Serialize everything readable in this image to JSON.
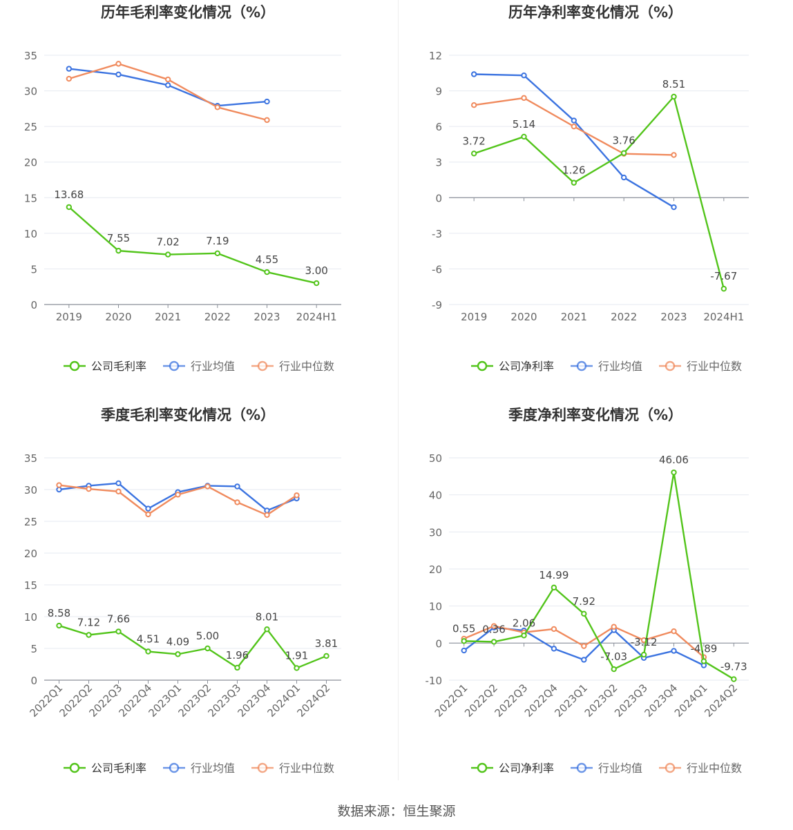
{
  "chart_data": [
    {
      "type": "line",
      "title": "历年毛利率变化情况（%）",
      "categories": [
        "2019",
        "2020",
        "2021",
        "2022",
        "2023",
        "2024H1"
      ],
      "ylim": [
        0,
        35
      ],
      "yticks": [
        0,
        5,
        10,
        15,
        20,
        25,
        30,
        35
      ],
      "grid": true,
      "legend": "bottom",
      "series": [
        {
          "name": "公司毛利率",
          "color": "#52c41a",
          "values": [
            13.68,
            7.55,
            7.02,
            7.19,
            4.55,
            3.0
          ],
          "labels": [
            "13.68",
            "7.55",
            "7.02",
            "7.19",
            "4.55",
            "3.00"
          ]
        },
        {
          "name": "行业均值",
          "color": "#3b73e0",
          "values": [
            33.1,
            32.3,
            30.8,
            27.9,
            28.5,
            null
          ]
        },
        {
          "name": "行业中位数",
          "color": "#f08a5d",
          "values": [
            31.7,
            33.8,
            31.6,
            27.7,
            25.9,
            null
          ]
        }
      ]
    },
    {
      "type": "line",
      "title": "历年净利率变化情况（%）",
      "categories": [
        "2019",
        "2020",
        "2021",
        "2022",
        "2023",
        "2024H1"
      ],
      "ylim": [
        -9,
        12
      ],
      "yticks": [
        -9,
        -6,
        -3,
        0,
        3,
        6,
        9,
        12
      ],
      "grid": true,
      "legend": "bottom",
      "series": [
        {
          "name": "公司净利率",
          "color": "#52c41a",
          "values": [
            3.72,
            5.14,
            1.26,
            3.76,
            8.51,
            -7.67
          ],
          "labels": [
            "3.72",
            "5.14",
            "1.26",
            "3.76",
            "8.51",
            "-7.67"
          ]
        },
        {
          "name": "行业均值",
          "color": "#3b73e0",
          "values": [
            10.4,
            10.3,
            6.5,
            1.7,
            -0.8,
            null
          ]
        },
        {
          "name": "行业中位数",
          "color": "#f08a5d",
          "values": [
            7.8,
            8.4,
            6.0,
            3.7,
            3.6,
            null
          ]
        }
      ]
    },
    {
      "type": "line",
      "title": "季度毛利率变化情况（%）",
      "categories": [
        "2022Q1",
        "2022Q2",
        "2022Q3",
        "2022Q4",
        "2023Q1",
        "2023Q2",
        "2023Q3",
        "2023Q4",
        "2024Q1",
        "2024Q2"
      ],
      "ylim": [
        0,
        35
      ],
      "yticks": [
        0,
        5,
        10,
        15,
        20,
        25,
        30,
        35
      ],
      "grid": true,
      "legend": "bottom",
      "rotate_xticks": true,
      "series": [
        {
          "name": "公司毛利率",
          "color": "#52c41a",
          "values": [
            8.58,
            7.12,
            7.66,
            4.51,
            4.09,
            5.0,
            1.96,
            8.01,
            1.91,
            3.81
          ],
          "labels": [
            "8.58",
            "7.12",
            "7.66",
            "4.51",
            "4.09",
            "5.00",
            "1.96",
            "8.01",
            "1.91",
            "3.81"
          ]
        },
        {
          "name": "行业均值",
          "color": "#3b73e0",
          "values": [
            30.0,
            30.6,
            31.0,
            27.0,
            29.6,
            30.6,
            30.5,
            26.7,
            28.6,
            null
          ]
        },
        {
          "name": "行业中位数",
          "color": "#f08a5d",
          "values": [
            30.7,
            30.1,
            29.7,
            26.1,
            29.2,
            30.5,
            28.0,
            26.0,
            29.1,
            null
          ]
        }
      ]
    },
    {
      "type": "line",
      "title": "季度净利率变化情况（%）",
      "categories": [
        "2022Q1",
        "2022Q2",
        "2022Q3",
        "2022Q4",
        "2023Q1",
        "2023Q2",
        "2023Q3",
        "2023Q4",
        "2024Q1",
        "2024Q2"
      ],
      "ylim": [
        -10,
        50
      ],
      "yticks": [
        -10,
        0,
        10,
        20,
        30,
        40,
        50
      ],
      "grid": true,
      "legend": "bottom",
      "rotate_xticks": true,
      "series": [
        {
          "name": "公司净利率",
          "color": "#52c41a",
          "values": [
            0.55,
            0.36,
            2.06,
            14.99,
            7.92,
            -7.03,
            -3.12,
            46.06,
            -4.89,
            -9.73
          ],
          "labels": [
            "0.55",
            "0.36",
            "2.06",
            "14.99",
            "7.92",
            "-7.03",
            "-3.12",
            "46.06",
            "-4.89",
            "-9.73"
          ]
        },
        {
          "name": "行业均值",
          "color": "#3b73e0",
          "values": [
            -2.0,
            4.2,
            3.4,
            -1.5,
            -4.5,
            3.5,
            -4.0,
            -2.1,
            -6.0,
            null
          ]
        },
        {
          "name": "行业中位数",
          "color": "#f08a5d",
          "values": [
            1.2,
            4.6,
            2.9,
            3.8,
            -0.8,
            4.4,
            0.8,
            3.2,
            -3.8,
            null
          ]
        }
      ]
    }
  ],
  "source": "数据来源：恒生聚源"
}
